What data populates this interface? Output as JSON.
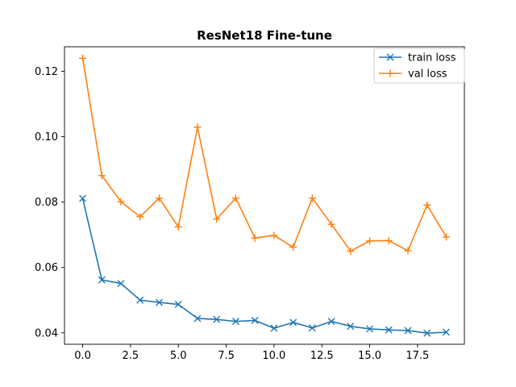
{
  "chart_data": {
    "type": "line",
    "title": "ResNet18 Fine-tune",
    "xlabel": "",
    "ylabel": "",
    "x": [
      0,
      1,
      2,
      3,
      4,
      5,
      6,
      7,
      8,
      9,
      10,
      11,
      12,
      13,
      14,
      15,
      16,
      17,
      18,
      19
    ],
    "xlim": [
      -0.95,
      19.95
    ],
    "ylim": [
      0.0365,
      0.1275
    ],
    "xticks": [
      0,
      2.5,
      5,
      7.5,
      10,
      12.5,
      15,
      17.5
    ],
    "xtick_labels": [
      "0.0",
      "2.5",
      "5.0",
      "7.5",
      "10.0",
      "12.5",
      "15.0",
      "17.5"
    ],
    "yticks": [
      0.04,
      0.06,
      0.08,
      0.1,
      0.12
    ],
    "ytick_labels": [
      "0.04",
      "0.06",
      "0.08",
      "0.10",
      "0.12"
    ],
    "grid": false,
    "legend_position": "top-right",
    "series": [
      {
        "name": "train loss",
        "color": "#1f77b4",
        "marker": "x",
        "values": [
          0.0811,
          0.0562,
          0.0551,
          0.05,
          0.0493,
          0.0487,
          0.0444,
          0.0441,
          0.0435,
          0.0438,
          0.0414,
          0.0432,
          0.0415,
          0.0435,
          0.042,
          0.0412,
          0.0409,
          0.0407,
          0.0399,
          0.0402
        ]
      },
      {
        "name": "val loss",
        "color": "#ff7f0e",
        "marker": "+",
        "values": [
          0.124,
          0.0881,
          0.0801,
          0.0755,
          0.0812,
          0.0724,
          0.1029,
          0.0748,
          0.0812,
          0.069,
          0.0698,
          0.0662,
          0.0812,
          0.0732,
          0.065,
          0.0681,
          0.0682,
          0.0651,
          0.0791,
          0.0693
        ]
      }
    ]
  }
}
